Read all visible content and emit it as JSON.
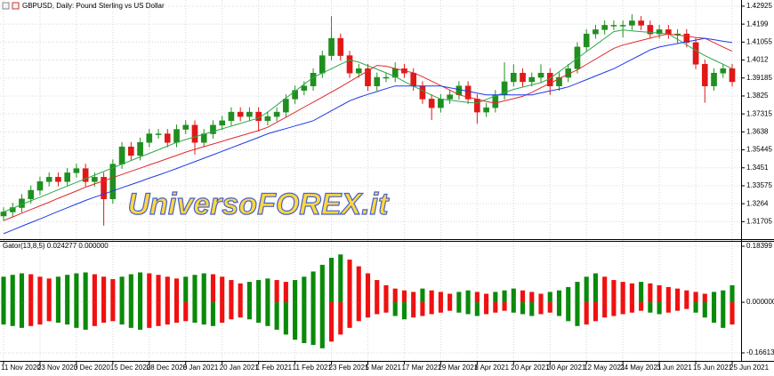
{
  "chart_data": [
    {
      "type": "candlestick",
      "title": "GBPUSD, Daily: Pound Sterling vs US Dollar",
      "watermark": "UniversoFOREX.it",
      "up_color": "#1f8f1f",
      "down_color": "#e01818",
      "open": [
        1.32,
        1.3221,
        1.3244,
        1.3289,
        1.3334,
        1.3379,
        1.3402,
        1.3379,
        1.3425,
        1.3447,
        1.3379,
        1.3402,
        1.3289,
        1.347,
        1.356,
        1.3515,
        1.3583,
        1.3628,
        1.3628,
        1.3583,
        1.3651,
        1.3673,
        1.3583,
        1.3628,
        1.3673,
        1.3696,
        1.3741,
        1.3718,
        1.3741,
        1.3696,
        1.3718,
        1.3741,
        1.3809,
        1.3854,
        1.3877,
        1.3944,
        1.4035,
        1.4125,
        1.4035,
        1.3944,
        1.3967,
        1.3877,
        1.3922,
        1.3922,
        1.3967,
        1.3944,
        1.3877,
        1.3809,
        1.3764,
        1.3809,
        1.3831,
        1.3877,
        1.3809,
        1.3741,
        1.3764,
        1.3831,
        1.3899,
        1.3944,
        1.3899,
        1.3922,
        1.3944,
        1.3877,
        1.3922,
        1.3967,
        1.408,
        1.4148,
        1.417,
        1.4193,
        1.4193,
        1.4193,
        1.4216,
        1.4193,
        1.4148,
        1.417,
        1.4148,
        1.4148,
        1.4103,
        1.399,
        1.3877,
        1.3944,
        1.3967
      ],
      "high": [
        1.3246,
        1.3269,
        1.3314,
        1.3359,
        1.3404,
        1.3427,
        1.3427,
        1.345,
        1.3472,
        1.3472,
        1.3427,
        1.3427,
        1.3495,
        1.3585,
        1.3585,
        1.3608,
        1.3653,
        1.3653,
        1.3653,
        1.3676,
        1.3698,
        1.3698,
        1.3653,
        1.3698,
        1.3721,
        1.3766,
        1.3766,
        1.3766,
        1.3766,
        1.3743,
        1.3766,
        1.3834,
        1.3879,
        1.3902,
        1.3969,
        1.406,
        1.424,
        1.415,
        1.406,
        1.3992,
        1.3992,
        1.3947,
        1.3947,
        1.4,
        1.3992,
        1.3969,
        1.3902,
        1.3834,
        1.3834,
        1.3856,
        1.3902,
        1.3902,
        1.3834,
        1.3789,
        1.3856,
        1.4,
        1.399,
        1.3969,
        1.3947,
        1.399,
        1.3969,
        1.3947,
        1.3992,
        1.4105,
        1.4173,
        1.4195,
        1.4218,
        1.4218,
        1.4218,
        1.425,
        1.4241,
        1.4218,
        1.4195,
        1.4195,
        1.4173,
        1.4173,
        1.4128,
        1.4015,
        1.3969,
        1.3992,
        1.3992
      ],
      "low": [
        1.3175,
        1.3196,
        1.3219,
        1.3264,
        1.3309,
        1.3354,
        1.3354,
        1.3354,
        1.34,
        1.3354,
        1.3354,
        1.315,
        1.3264,
        1.3445,
        1.349,
        1.349,
        1.3558,
        1.3603,
        1.3558,
        1.3558,
        1.3626,
        1.352,
        1.3558,
        1.3603,
        1.3648,
        1.3671,
        1.3693,
        1.3693,
        1.364,
        1.3671,
        1.3693,
        1.3716,
        1.3784,
        1.3829,
        1.3852,
        1.3919,
        1.401,
        1.401,
        1.3919,
        1.3919,
        1.3852,
        1.3852,
        1.3897,
        1.3897,
        1.3919,
        1.3852,
        1.3784,
        1.37,
        1.3739,
        1.3784,
        1.3806,
        1.3784,
        1.368,
        1.3716,
        1.3739,
        1.3806,
        1.3874,
        1.3874,
        1.3874,
        1.3897,
        1.383,
        1.3852,
        1.3897,
        1.3942,
        1.4055,
        1.4123,
        1.4145,
        1.4168,
        1.413,
        1.4168,
        1.4168,
        1.4123,
        1.4123,
        1.4123,
        1.41,
        1.4078,
        1.3965,
        1.379,
        1.3852,
        1.3919,
        1.3874
      ],
      "close": [
        1.3221,
        1.3244,
        1.3289,
        1.3334,
        1.3379,
        1.3402,
        1.3379,
        1.3425,
        1.3447,
        1.3379,
        1.3402,
        1.3289,
        1.347,
        1.356,
        1.3515,
        1.3583,
        1.3628,
        1.3628,
        1.3583,
        1.3651,
        1.3673,
        1.3583,
        1.3628,
        1.3673,
        1.3696,
        1.3741,
        1.3718,
        1.3741,
        1.3696,
        1.3718,
        1.3741,
        1.3809,
        1.3854,
        1.3877,
        1.3944,
        1.4035,
        1.4125,
        1.4035,
        1.3944,
        1.3967,
        1.3877,
        1.3922,
        1.3922,
        1.3967,
        1.3944,
        1.3877,
        1.3809,
        1.3764,
        1.3809,
        1.3831,
        1.3877,
        1.3809,
        1.3741,
        1.3764,
        1.3831,
        1.3899,
        1.3944,
        1.3899,
        1.3922,
        1.3944,
        1.3877,
        1.3922,
        1.3967,
        1.408,
        1.4148,
        1.417,
        1.4193,
        1.4193,
        1.4193,
        1.4216,
        1.4193,
        1.4148,
        1.417,
        1.4148,
        1.4148,
        1.4103,
        1.399,
        1.3877,
        1.3944,
        1.3967,
        1.3899
      ],
      "series": [
        {
          "color": "#2ea84a",
          "values": [
            1.3221,
            1.324,
            1.326,
            1.3279,
            1.3298,
            1.3317,
            1.3337,
            1.3356,
            1.3375,
            1.3394,
            1.3413,
            1.3432,
            1.3451,
            1.347,
            1.3489,
            1.3508,
            1.3526,
            1.3545,
            1.3564,
            1.3583,
            1.3598,
            1.3612,
            1.3626,
            1.364,
            1.3654,
            1.3668,
            1.3682,
            1.3696,
            1.371,
            1.3741,
            1.3777,
            1.3814,
            1.385,
            1.3886,
            1.3922,
            1.3944,
            1.3967,
            1.399,
            1.4012,
            1.4001,
            1.3982,
            1.3964,
            1.3945,
            1.3926,
            1.39,
            1.3876,
            1.3853,
            1.3829,
            1.3809,
            1.3803,
            1.3797,
            1.3791,
            1.3788,
            1.3807,
            1.3825,
            1.3843,
            1.3859,
            1.3871,
            1.3883,
            1.3894,
            1.3916,
            1.3951,
            1.3986,
            1.4021,
            1.4056,
            1.409,
            1.4125,
            1.416,
            1.4168,
            1.4164,
            1.416,
            1.4156,
            1.4152,
            1.4148,
            1.412,
            1.4091,
            1.4062,
            1.4035,
            1.4012,
            1.399,
            1.3967
          ]
        },
        {
          "color": "#e02a2a",
          "values": [
            1.3176,
            1.3195,
            1.3215,
            1.3234,
            1.3253,
            1.3272,
            1.3292,
            1.3311,
            1.333,
            1.335,
            1.3367,
            1.3383,
            1.34,
            1.3416,
            1.3433,
            1.3449,
            1.3466,
            1.3482,
            1.3499,
            1.3515,
            1.3533,
            1.3547,
            1.3561,
            1.3575,
            1.3589,
            1.3603,
            1.3617,
            1.3631,
            1.3645,
            1.3662,
            1.3688,
            1.3714,
            1.374,
            1.3767,
            1.3793,
            1.3819,
            1.3845,
            1.3872,
            1.39,
            1.3928,
            1.3956,
            1.3984,
            1.398,
            1.3968,
            1.3956,
            1.3946,
            1.3925,
            1.3902,
            1.3879,
            1.3856,
            1.3831,
            1.3819,
            1.3808,
            1.3796,
            1.3788,
            1.38,
            1.3811,
            1.3823,
            1.3844,
            1.3868,
            1.3891,
            1.3915,
            1.3939,
            1.3961,
            1.3989,
            1.4017,
            1.4045,
            1.4073,
            1.409,
            1.4102,
            1.4114,
            1.4126,
            1.4138,
            1.4148,
            1.4142,
            1.4136,
            1.413,
            1.4125,
            1.4103,
            1.408,
            1.4058
          ]
        },
        {
          "color": "#1f3ae8",
          "values": [
            1.3108,
            1.3127,
            1.3147,
            1.3166,
            1.3185,
            1.3204,
            1.3224,
            1.3243,
            1.3262,
            1.3281,
            1.3298,
            1.3314,
            1.3331,
            1.3347,
            1.3364,
            1.338,
            1.3397,
            1.3413,
            1.343,
            1.3447,
            1.3465,
            1.3483,
            1.3501,
            1.3519,
            1.3537,
            1.3555,
            1.3573,
            1.3591,
            1.3609,
            1.3628,
            1.3642,
            1.3655,
            1.3669,
            1.3682,
            1.3696,
            1.3722,
            1.3748,
            1.3774,
            1.38,
            1.3818,
            1.3833,
            1.3848,
            1.3863,
            1.3877,
            1.3877,
            1.3877,
            1.3877,
            1.3877,
            1.3877,
            1.3868,
            1.3859,
            1.385,
            1.384,
            1.3831,
            1.3831,
            1.3831,
            1.3831,
            1.3831,
            1.3831,
            1.3841,
            1.3851,
            1.3861,
            1.3872,
            1.3891,
            1.391,
            1.3929,
            1.3948,
            1.3967,
            1.3991,
            1.4016,
            1.404,
            1.4065,
            1.408,
            1.4089,
            1.4098,
            1.4107,
            1.4116,
            1.4125,
            1.4118,
            1.411,
            1.4103
          ]
        }
      ],
      "ylim": [
        1.30936,
        1.43061
      ],
      "yticks": [
        1.42925,
        1.4199,
        1.41055,
        1.4012,
        1.39185,
        1.3825,
        1.37315,
        1.3638,
        1.35445,
        1.3451,
        1.33575,
        1.3264,
        1.31705
      ],
      "grid": true
    },
    {
      "type": "gator",
      "title": "Gator(13,8,5) 0.024277 0.000000",
      "rising_color": "#0a8a0a",
      "falling_color": "#f01010",
      "categories": [
        "11 Nov 2020",
        null,
        null,
        null,
        "23 Nov 2020",
        null,
        null,
        null,
        "3 Dec 2020",
        null,
        null,
        null,
        "15 Dec 2020",
        null,
        null,
        null,
        "28 Dec 2020",
        null,
        null,
        null,
        "8 Jan 2021",
        null,
        null,
        null,
        "20 Jan 2021",
        null,
        null,
        null,
        "1 Feb 2021",
        null,
        null,
        null,
        "11 Feb 2021",
        null,
        null,
        null,
        "23 Feb 2021",
        null,
        null,
        null,
        "5 Mar 2021",
        null,
        null,
        null,
        "17 Mar 2021",
        null,
        null,
        null,
        "29 Mar 2021",
        null,
        null,
        null,
        "8 Apr 2021",
        null,
        null,
        null,
        "20 Apr 2021",
        null,
        null,
        null,
        "30 Apr 2021",
        null,
        null,
        null,
        "12 May 2021",
        null,
        null,
        null,
        "24 May 2021",
        null,
        null,
        null,
        "3 Jun 2021",
        null,
        null,
        null,
        "15 Jun 2021",
        null,
        null,
        null,
        "25 Jun 2021"
      ],
      "series": [
        {
          "values": [
            0.084,
            0.09,
            0.095,
            0.092,
            0.084,
            0.078,
            0.084,
            0.09,
            0.095,
            0.098,
            0.092,
            0.084,
            0.076,
            0.084,
            0.092,
            0.098,
            0.095,
            0.09,
            0.084,
            0.078,
            0.084,
            0.09,
            0.095,
            0.092,
            0.084,
            0.073,
            0.062,
            0.067,
            0.073,
            0.078,
            0.073,
            0.067,
            0.073,
            0.084,
            0.101,
            0.123,
            0.146,
            0.157,
            0.14,
            0.118,
            0.095,
            0.073,
            0.056,
            0.045,
            0.039,
            0.034,
            0.045,
            0.039,
            0.034,
            0.028,
            0.034,
            0.039,
            0.034,
            0.028,
            0.034,
            0.039,
            0.045,
            0.039,
            0.034,
            0.028,
            0.034,
            0.039,
            0.05,
            0.067,
            0.084,
            0.095,
            0.084,
            0.073,
            0.067,
            0.062,
            0.067,
            0.062,
            0.056,
            0.05,
            0.045,
            0.039,
            0.034,
            0.028,
            0.034,
            0.039,
            0.056
          ]
        },
        {
          "values": [
            -0.073,
            -0.078,
            -0.084,
            -0.078,
            -0.073,
            -0.062,
            -0.067,
            -0.073,
            -0.084,
            -0.09,
            -0.078,
            -0.067,
            -0.062,
            -0.073,
            -0.084,
            -0.09,
            -0.084,
            -0.078,
            -0.073,
            -0.067,
            -0.062,
            -0.067,
            -0.073,
            -0.078,
            -0.067,
            -0.056,
            -0.05,
            -0.056,
            -0.067,
            -0.078,
            -0.09,
            -0.106,
            -0.123,
            -0.134,
            -0.14,
            -0.151,
            -0.129,
            -0.106,
            -0.084,
            -0.062,
            -0.05,
            -0.039,
            -0.034,
            -0.045,
            -0.056,
            -0.05,
            -0.045,
            -0.039,
            -0.034,
            -0.028,
            -0.034,
            -0.039,
            -0.045,
            -0.039,
            -0.034,
            -0.028,
            -0.034,
            -0.039,
            -0.045,
            -0.039,
            -0.034,
            -0.045,
            -0.062,
            -0.078,
            -0.073,
            -0.062,
            -0.05,
            -0.045,
            -0.039,
            -0.034,
            -0.028,
            -0.034,
            -0.039,
            -0.034,
            -0.028,
            -0.022,
            -0.034,
            -0.05,
            -0.067,
            -0.084,
            -0.073
          ]
        }
      ],
      "ylim": [
        -0.16613,
        0.18399
      ],
      "yticks": [
        0.18399,
        {
          "value": 0,
          "label": "0.000000"
        },
        -0.16613
      ],
      "grid": true
    }
  ]
}
